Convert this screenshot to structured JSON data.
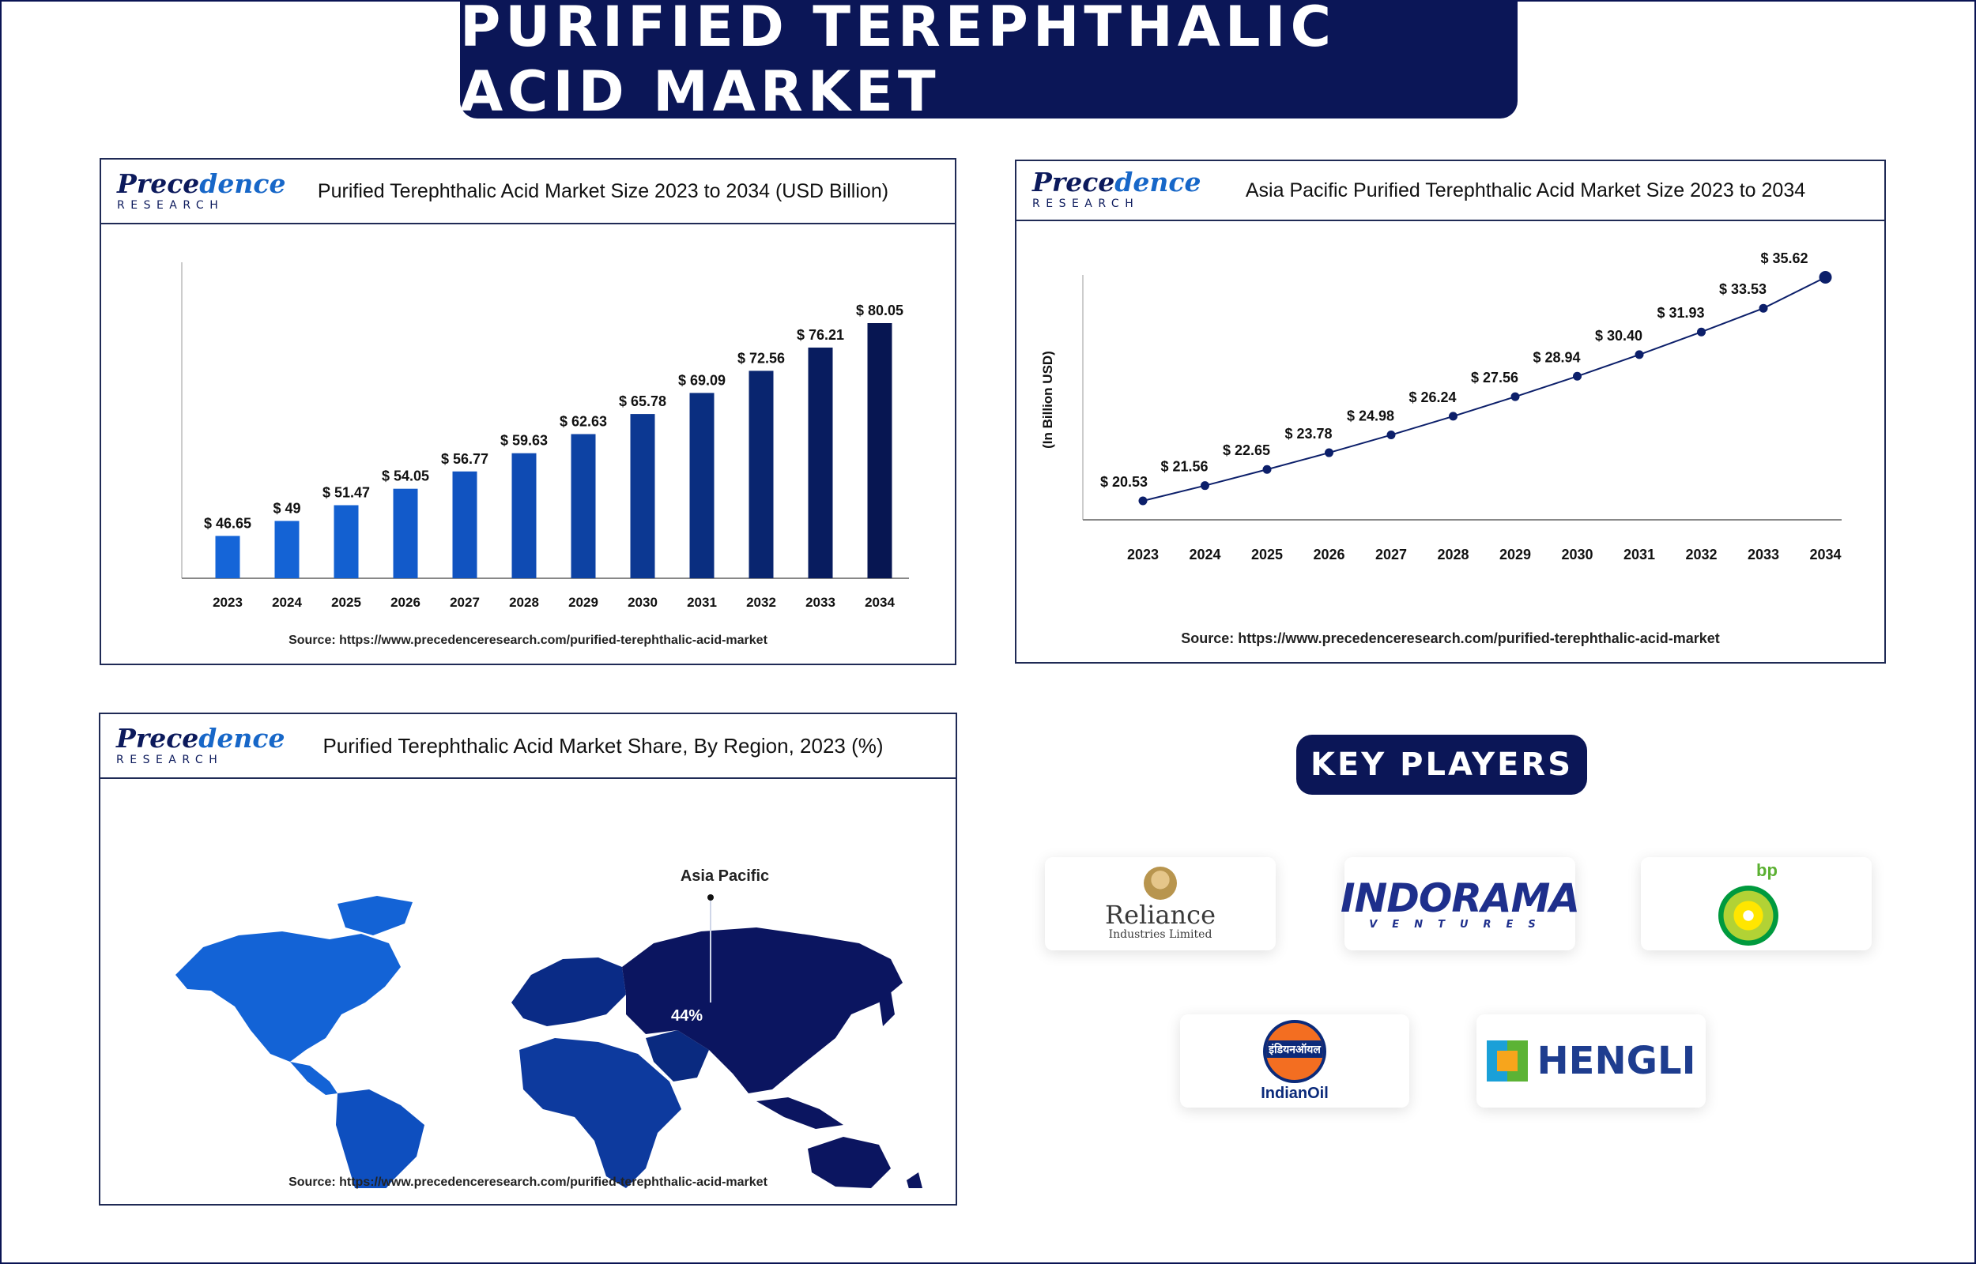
{
  "header": {
    "title": "PURIFIED TEREPHTHALIC ACID MARKET"
  },
  "logo": {
    "line1a": "Prece",
    "line1b": "dence",
    "line2": "RESEARCH"
  },
  "panels": {
    "bar": {
      "title": "Purified Terephthalic Acid Market Size 2023 to 2034 (USD Billion)",
      "source": "Source: https://www.precedenceresearch.com/purified-terephthalic-acid-market"
    },
    "line": {
      "title": "Asia Pacific Purified Terephthalic Acid Market Size 2023 to 2034",
      "source": "Source: https://www.precedenceresearch.com/purified-terephthalic-acid-market"
    },
    "map": {
      "title": "Purified Terephthalic Acid Market Share, By Region, 2023 (%)",
      "source": "Source: https://www.precedenceresearch.com/purified-terephthalic-acid-market"
    }
  },
  "chart_data": [
    {
      "type": "bar",
      "title": "Purified Terephthalic Acid Market Size 2023 to 2034 (USD Billion)",
      "categories": [
        "2023",
        "2024",
        "2025",
        "2026",
        "2027",
        "2028",
        "2029",
        "2030",
        "2031",
        "2032",
        "2033",
        "2034"
      ],
      "values": [
        46.65,
        49,
        51.47,
        54.05,
        56.77,
        59.63,
        62.63,
        65.78,
        69.09,
        72.56,
        76.21,
        80.05
      ],
      "labels": [
        "$ 46.65",
        "$ 49",
        "$ 51.47",
        "$ 54.05",
        "$ 56.77",
        "$ 59.63",
        "$ 62.63",
        "$ 65.78",
        "$ 69.09",
        "$ 72.56",
        "$ 76.21",
        "$ 80.05"
      ],
      "colors": [
        "#1565d8",
        "#1463d5",
        "#1360d0",
        "#125aca",
        "#1153c0",
        "#0f4bb3",
        "#0d42a3",
        "#0c3892",
        "#0a2e80",
        "#09256f",
        "#081c5f",
        "#071652"
      ],
      "baseline": 40
    },
    {
      "type": "line",
      "title": "Asia Pacific Purified Terephthalic Acid Market Size 2023 to 2034",
      "ylabel": "(In Billion USD)",
      "x": [
        "2023",
        "2024",
        "2025",
        "2026",
        "2027",
        "2028",
        "2029",
        "2030",
        "2031",
        "2032",
        "2033",
        "2034"
      ],
      "values": [
        20.53,
        21.56,
        22.65,
        23.78,
        24.98,
        26.24,
        27.56,
        28.94,
        30.4,
        31.93,
        33.53,
        35.62
      ],
      "labels": [
        "$ 20.53",
        "$ 21.56",
        "$ 22.65",
        "$ 23.78",
        "$ 24.98",
        "$ 26.24",
        "$ 27.56",
        "$ 28.94",
        "$ 30.40",
        "$ 31.93",
        "$ 33.53",
        "$ 35.62"
      ],
      "color": "#0c1f6a"
    },
    {
      "type": "map",
      "title": "Purified Terephthalic Acid Market Share, By Region, 2023 (%)",
      "regions": [
        {
          "name": "Asia Pacific",
          "value": 44,
          "label": "44%"
        }
      ]
    }
  ],
  "key_players": {
    "title": "KEY PLAYERS",
    "companies": [
      {
        "name": "Reliance",
        "sub": "Industries Limited"
      },
      {
        "name": "INDORAMA",
        "sub": "VENTURES"
      },
      {
        "name": "bp",
        "sub": ""
      },
      {
        "name": "IndianOil",
        "sub": "इंडियनऑयल"
      },
      {
        "name": "HENGLI",
        "sub": ""
      }
    ]
  }
}
